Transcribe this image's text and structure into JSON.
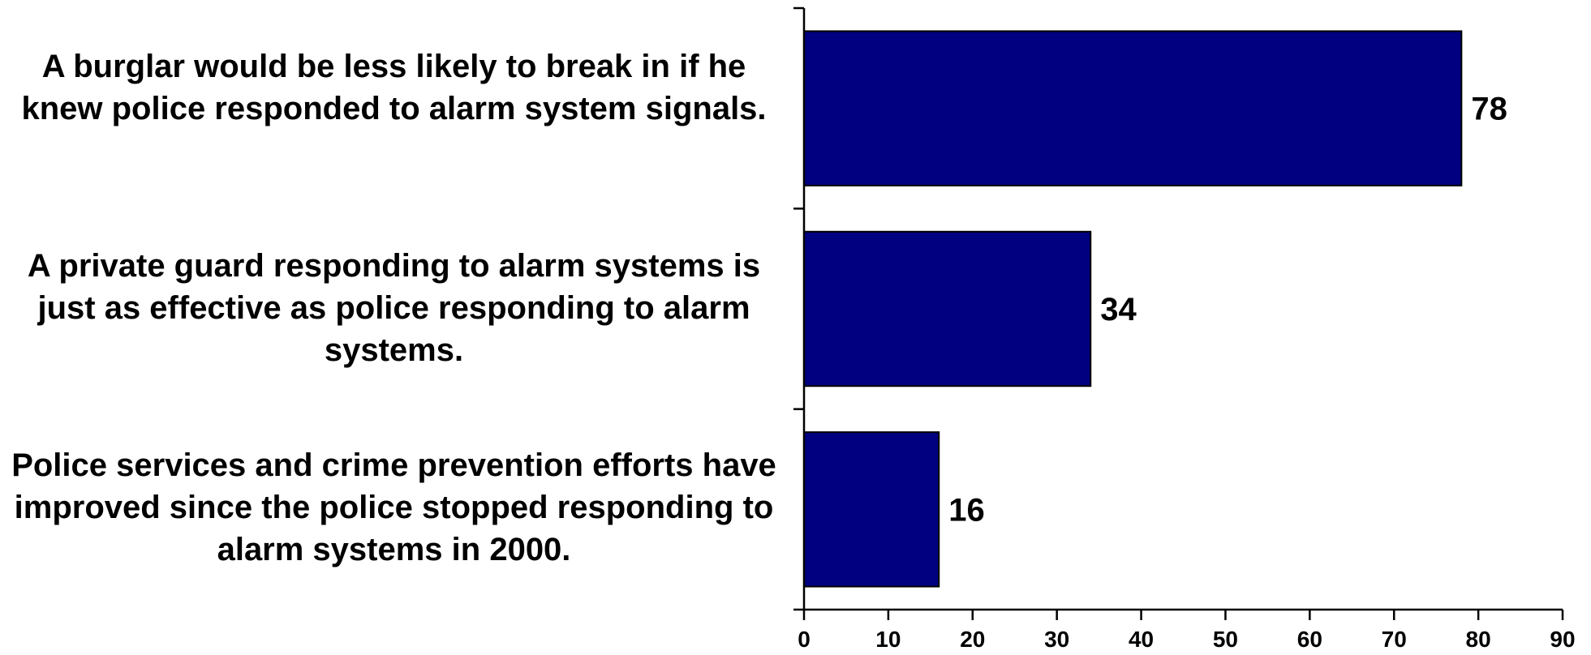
{
  "chart_data": {
    "type": "bar",
    "orientation": "horizontal",
    "categories": [
      "A burglar would be less likely to break in if he knew police responded to alarm system signals.",
      "A private guard responding to alarm systems is just as effective as police responding to alarm systems.",
      "Police services and crime prevention efforts have improved since the police stopped responding to alarm systems in 2000."
    ],
    "values": [
      78,
      34,
      16
    ],
    "data_labels": [
      "78",
      "34",
      "16"
    ],
    "xlim": [
      0,
      90
    ],
    "xticks": [
      "0",
      "10",
      "20",
      "30",
      "40",
      "50",
      "60",
      "70",
      "80",
      "90"
    ],
    "title": "",
    "xlabel": "",
    "ylabel": "",
    "grid": false,
    "legend": "none",
    "bar_color": "#000080"
  }
}
